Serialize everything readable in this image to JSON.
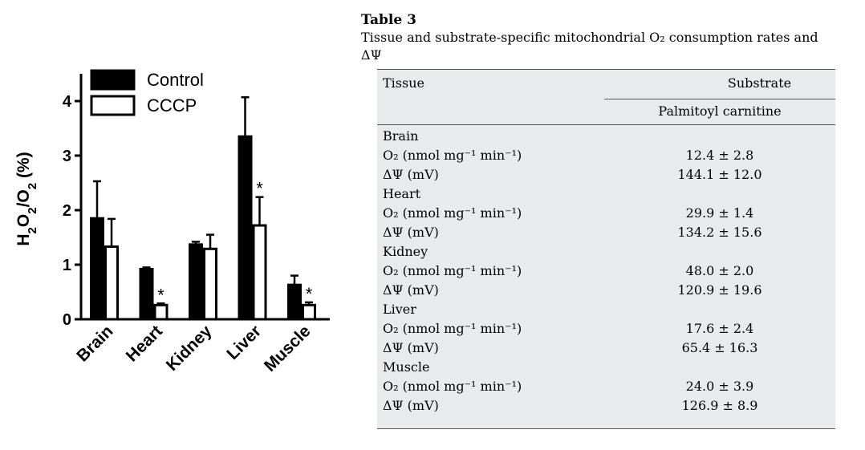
{
  "chart_data": {
    "type": "bar",
    "ylabel": "H2O2/O2 (%)",
    "ylim": [
      0,
      4.5
    ],
    "yticks": [
      0,
      1,
      2,
      3,
      4
    ],
    "categories": [
      "Brain",
      "Heart",
      "Kidney",
      "Liver",
      "Muscle"
    ],
    "series": [
      {
        "name": "Control",
        "fill": "#000000",
        "values": [
          1.85,
          0.92,
          1.37,
          3.35,
          0.63
        ],
        "errors": [
          0.68,
          0.03,
          0.05,
          0.72,
          0.17
        ],
        "sig": [
          false,
          false,
          false,
          false,
          false
        ]
      },
      {
        "name": "CCCP",
        "fill": "#ffffff",
        "values": [
          1.33,
          0.26,
          1.29,
          1.72,
          0.26
        ],
        "errors": [
          0.51,
          0.03,
          0.26,
          0.52,
          0.05
        ],
        "sig": [
          false,
          true,
          false,
          true,
          true
        ]
      }
    ],
    "significance_marker": "*"
  },
  "table": {
    "title": "Table 3",
    "caption": "Tissue and substrate-specific mitochondrial O₂ consumption rates and ΔΨ",
    "col_tissue": "Tissue",
    "col_substrate": "Substrate",
    "col_palmitoyl": "Palmitoyl carnitine",
    "rows": [
      {
        "label": "Brain",
        "value": ""
      },
      {
        "label": "O₂ (nmol mg⁻¹ min⁻¹)",
        "value": "12.4 ± 2.8"
      },
      {
        "label": "ΔΨ (mV)",
        "value": "144.1 ± 12.0"
      },
      {
        "label": "Heart",
        "value": ""
      },
      {
        "label": "O₂ (nmol mg⁻¹ min⁻¹)",
        "value": "29.9 ± 1.4"
      },
      {
        "label": "ΔΨ (mV)",
        "value": "134.2 ± 15.6"
      },
      {
        "label": "Kidney",
        "value": ""
      },
      {
        "label": "O₂ (nmol mg⁻¹ min⁻¹)",
        "value": "48.0 ± 2.0"
      },
      {
        "label": "ΔΨ (mV)",
        "value": "120.9 ± 19.6"
      },
      {
        "label": "Liver",
        "value": ""
      },
      {
        "label": "O₂ (nmol mg⁻¹ min⁻¹)",
        "value": "17.6 ± 2.4"
      },
      {
        "label": "ΔΨ (mV)",
        "value": "65.4 ± 16.3"
      },
      {
        "label": "Muscle",
        "value": ""
      },
      {
        "label": "O₂ (nmol mg⁻¹ min⁻¹)",
        "value": "24.0 ± 3.9"
      },
      {
        "label": "ΔΨ (mV)",
        "value": "126.9 ± 8.9"
      }
    ]
  }
}
